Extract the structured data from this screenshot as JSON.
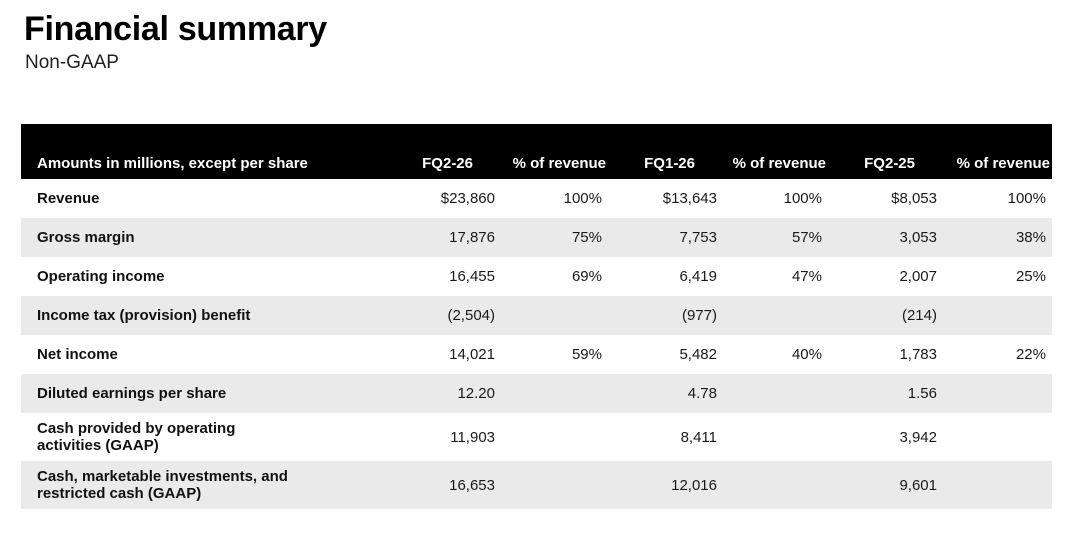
{
  "page": {
    "title": "Financial summary",
    "subtitle": "Non-GAAP"
  },
  "table": {
    "columns": [
      "Amounts in millions, except per share",
      "FQ2-26",
      "% of revenue",
      "FQ1-26",
      "% of revenue",
      "FQ2-25",
      "% of revenue"
    ],
    "rows": [
      {
        "label": "Revenue",
        "values": [
          "$23,860",
          "100%",
          "$13,643",
          "100%",
          "$8,053",
          "100%"
        ]
      },
      {
        "label": "Gross margin",
        "values": [
          "17,876",
          "75%",
          "7,753",
          "57%",
          "3,053",
          "38%"
        ]
      },
      {
        "label": "Operating income",
        "values": [
          "16,455",
          "69%",
          "6,419",
          "47%",
          "2,007",
          "25%"
        ]
      },
      {
        "label": "Income tax (provision) benefit",
        "values": [
          "(2,504)",
          "",
          "(977)",
          "",
          "(214)",
          ""
        ]
      },
      {
        "label": "Net income",
        "values": [
          "14,021",
          "59%",
          "5,482",
          "40%",
          "1,783",
          "22%"
        ]
      },
      {
        "label": "Diluted earnings per share",
        "values": [
          "12.20",
          "",
          "4.78",
          "",
          "1.56",
          ""
        ]
      },
      {
        "label": "Cash provided by operating\nactivities (GAAP)",
        "values": [
          "11,903",
          "",
          "8,411",
          "",
          "3,942",
          ""
        ]
      },
      {
        "label": "Cash, marketable investments, and\nrestricted cash (GAAP)",
        "values": [
          "16,653",
          "",
          "12,016",
          "",
          "9,601",
          ""
        ]
      }
    ]
  },
  "colors": {
    "header_bg": "#000000",
    "header_text": "#ffffff",
    "row_stripe": "#eaeaea",
    "background": "#ffffff",
    "text": "#1a1a1a"
  }
}
